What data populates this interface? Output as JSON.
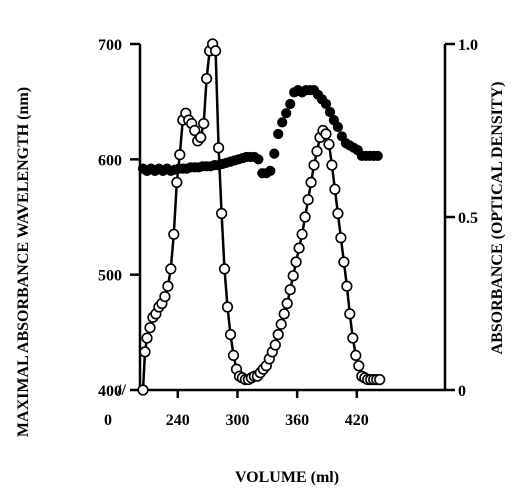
{
  "chart_data": {
    "type": "scatter",
    "title": "",
    "xlabel": "VOLUME (ml)",
    "ylabel_left": "MAXIMAL ABSORBANCE WAVELENGTH (nm)",
    "ylabel_right": "ABSORBANCE (OPTICAL DENSITY)",
    "xlim": [
      200,
      445
    ],
    "ylim_left": [
      400,
      700
    ],
    "ylim_right": [
      0,
      1.0
    ],
    "x_ticks": [
      "0",
      "240",
      "300",
      "360",
      "420"
    ],
    "y_left_ticks": [
      "400",
      "500",
      "600",
      "700"
    ],
    "y_right_ticks": [
      "0",
      "0.5",
      "1.0"
    ],
    "axis_break_symbol": "//",
    "grid": false,
    "legend": "none",
    "series": [
      {
        "axis": "left",
        "marker": "filled-circle",
        "connected": false,
        "x": [
          205,
          209,
          213,
          217,
          221,
          225,
          229,
          233,
          237,
          241,
          245,
          249,
          253,
          257,
          261,
          265,
          269,
          273,
          277,
          281,
          285,
          289,
          293,
          297,
          301,
          305,
          309,
          313,
          317,
          321,
          325,
          329,
          333,
          337,
          341,
          345,
          349,
          353,
          357,
          361,
          365,
          369,
          373,
          377,
          381,
          385,
          389,
          393,
          397,
          401,
          405,
          409,
          413,
          417,
          421,
          425,
          429,
          433,
          437,
          441
        ],
        "values": [
          592,
          590,
          592,
          590,
          592,
          590,
          592,
          590,
          591,
          592,
          592,
          592,
          593,
          593,
          593,
          594,
          594,
          594,
          595,
          595,
          596,
          597,
          598,
          599,
          600,
          601,
          602,
          602,
          602,
          600,
          588,
          588,
          590,
          605,
          622,
          632,
          640,
          648,
          658,
          660,
          658,
          660,
          660,
          660,
          656,
          652,
          648,
          641,
          634,
          628,
          620,
          614,
          612,
          610,
          608,
          603,
          603,
          603,
          603,
          603
        ]
      },
      {
        "axis": "right",
        "marker": "open-circle",
        "connected": true,
        "x": [
          205,
          207,
          209,
          212,
          215,
          218,
          221,
          224,
          227,
          230,
          233,
          236,
          239,
          242,
          245,
          248,
          251,
          254,
          257,
          260,
          263,
          266,
          269,
          272,
          275,
          278,
          281,
          284,
          287,
          290,
          293,
          296,
          299,
          302,
          305,
          308,
          311,
          314,
          317,
          320,
          323,
          326,
          329,
          332,
          335,
          338,
          341,
          344,
          347,
          350,
          353,
          356,
          359,
          362,
          365,
          368,
          371,
          374,
          377,
          380,
          383,
          386,
          389,
          392,
          395,
          398,
          401,
          404,
          407,
          410,
          413,
          416,
          419,
          422,
          425,
          428,
          431,
          434,
          437,
          440,
          443
        ],
        "values": [
          0.0,
          0.11,
          0.15,
          0.18,
          0.21,
          0.22,
          0.24,
          0.25,
          0.27,
          0.3,
          0.35,
          0.45,
          0.6,
          0.68,
          0.78,
          0.8,
          0.78,
          0.77,
          0.75,
          0.72,
          0.73,
          0.77,
          0.9,
          0.98,
          1.0,
          0.98,
          0.7,
          0.51,
          0.35,
          0.24,
          0.16,
          0.1,
          0.06,
          0.04,
          0.035,
          0.03,
          0.03,
          0.035,
          0.04,
          0.04,
          0.05,
          0.06,
          0.07,
          0.09,
          0.11,
          0.13,
          0.16,
          0.19,
          0.22,
          0.25,
          0.29,
          0.33,
          0.37,
          0.41,
          0.45,
          0.5,
          0.55,
          0.6,
          0.65,
          0.69,
          0.73,
          0.75,
          0.74,
          0.71,
          0.65,
          0.58,
          0.51,
          0.44,
          0.37,
          0.3,
          0.22,
          0.15,
          0.1,
          0.07,
          0.04,
          0.035,
          0.03,
          0.03,
          0.03,
          0.03,
          0.03
        ]
      }
    ]
  }
}
